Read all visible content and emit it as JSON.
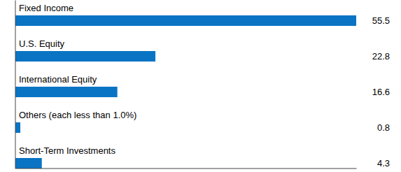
{
  "chart_data": {
    "type": "bar",
    "orientation": "horizontal",
    "categories": [
      "Fixed Income",
      "U.S. Equity",
      "International Equity",
      "Others (each less than 1.0%)",
      "Short-Term Investments"
    ],
    "values": [
      55.5,
      22.8,
      16.6,
      0.8,
      4.3
    ],
    "color": "#0a74c4",
    "xlim": [
      0,
      55.5
    ],
    "xticks": [],
    "data_labels": true,
    "tick_labels": "y",
    "grid": false
  }
}
